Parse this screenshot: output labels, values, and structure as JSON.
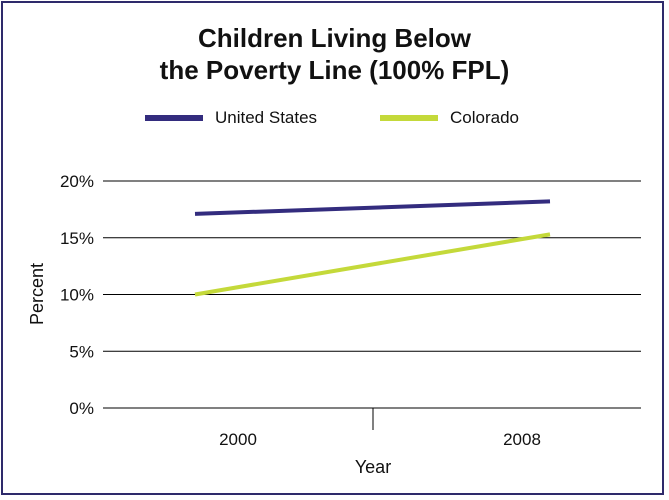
{
  "colors": {
    "border": "#2e2a6b",
    "us": "#332c7e",
    "colorado": "#c4d93a",
    "grid": "#000000"
  },
  "title": {
    "line1": "Children Living Below",
    "line2": "the Poverty Line (100% FPL)"
  },
  "chart_data": {
    "type": "line",
    "title": "Children Living Below the Poverty Line (100% FPL)",
    "categories": [
      "2000",
      "2008"
    ],
    "xlabel": "Year",
    "ylabel": "Percent",
    "ylim": [
      0,
      20
    ],
    "yticks": [
      0,
      5,
      10,
      15,
      20
    ],
    "ytick_labels": [
      "0%",
      "5%",
      "10%",
      "15%",
      "20%"
    ],
    "grid": true,
    "legend_position": "top",
    "series": [
      {
        "name": "United States",
        "values": [
          17.1,
          18.2
        ],
        "color": "#332c7e"
      },
      {
        "name": "Colorado",
        "values": [
          10.0,
          15.3
        ],
        "color": "#c4d93a"
      }
    ]
  }
}
